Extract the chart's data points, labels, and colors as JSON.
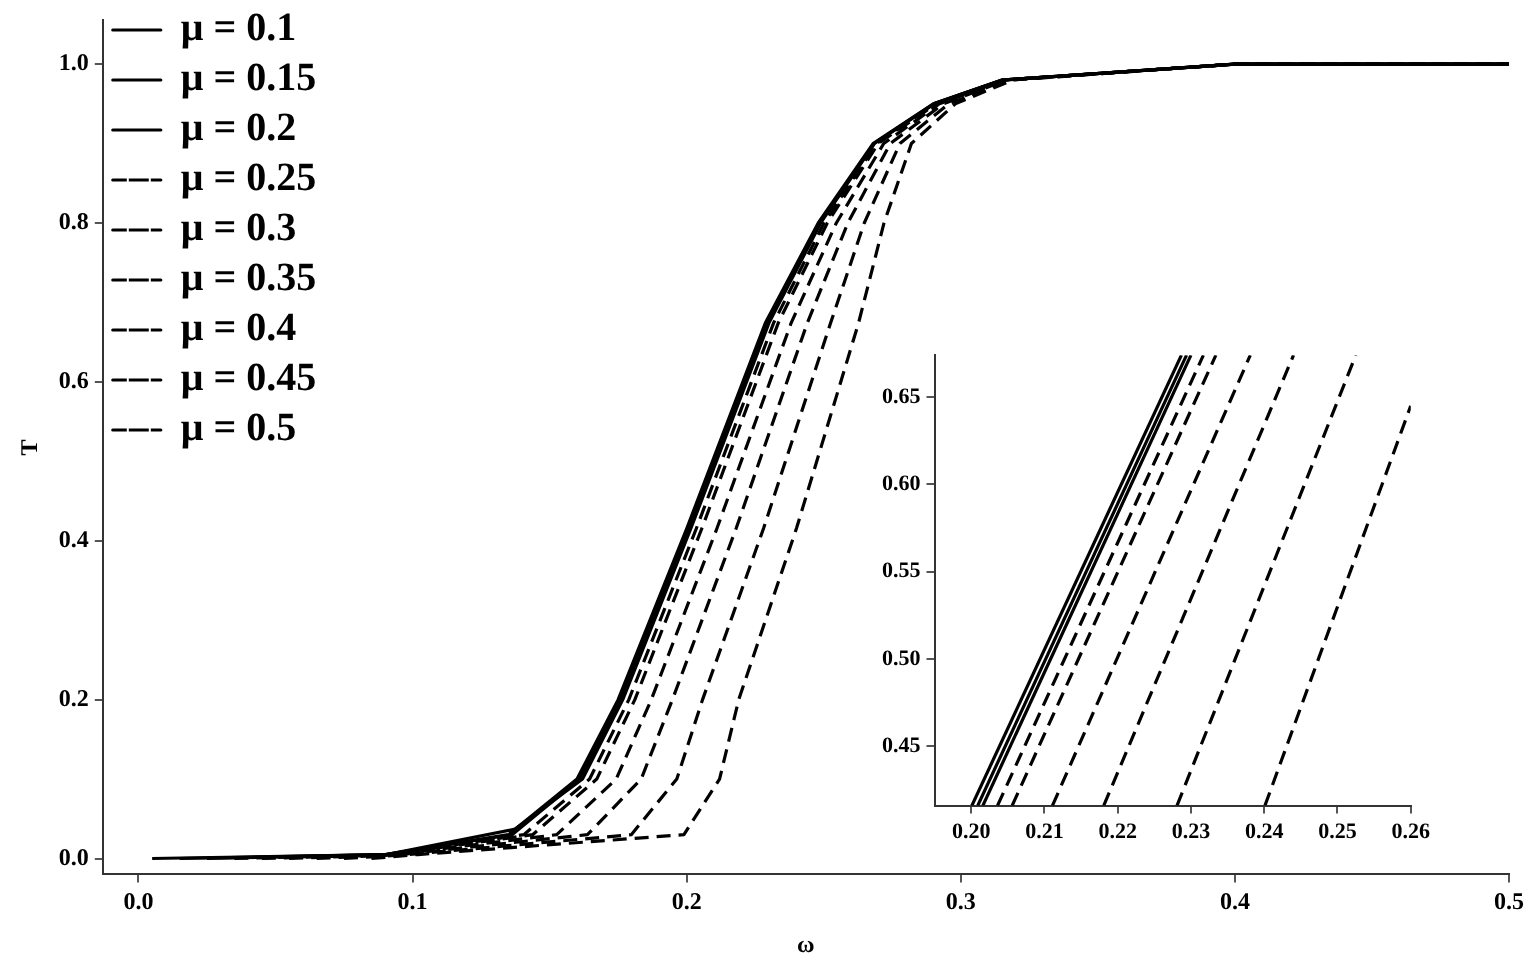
{
  "chart_data": [
    {
      "type": "line",
      "xlabel": "ω",
      "ylabel": "T",
      "xlim": [
        -0.013,
        0.5
      ],
      "ylim": [
        -0.02,
        1.055
      ],
      "xticks": [
        {
          "value": 0,
          "label": "0.0"
        },
        0.1,
        0.2,
        0.3,
        0.4,
        0.5
      ],
      "yticks": [
        {
          "value": 0,
          "label": "0.0"
        },
        0.2,
        0.4,
        0.6,
        0.8,
        {
          "value": 1,
          "label": "1.0"
        }
      ],
      "grid": false,
      "legend": "top left",
      "series": [
        {
          "name": "μ = 0.1",
          "color": "#000000",
          "line_style": "solid",
          "x": [
            0.005,
            0.09,
            0.135,
            0.16,
            0.175,
            0.2001,
            0.2287,
            0.248,
            0.268,
            0.29,
            0.315,
            0.4,
            0.5
          ],
          "values": [
            0,
            0.005,
            0.03,
            0.1,
            0.2,
            0.416,
            0.674,
            0.8,
            0.9,
            0.95,
            0.98,
            1,
            1
          ]
        },
        {
          "name": "μ = 0.15",
          "color": "#000000",
          "line_style": "solid",
          "x": [
            0.015,
            0.0902,
            0.1363,
            0.161,
            0.1759,
            0.2009,
            0.2294,
            0.2485,
            0.2683,
            0.2902,
            0.3151,
            0.4,
            0.5
          ],
          "values": [
            0,
            0.005,
            0.03,
            0.1,
            0.2,
            0.416,
            0.674,
            0.8,
            0.9,
            0.95,
            0.98,
            1,
            1
          ]
        },
        {
          "name": "μ = 0.2",
          "color": "#000000",
          "line_style": "solid",
          "x": [
            0.025,
            0.0905,
            0.1374,
            0.162,
            0.1767,
            0.2016,
            0.23,
            0.2489,
            0.2685,
            0.2903,
            0.3152,
            0.4,
            0.5
          ],
          "values": [
            0,
            0.005,
            0.037,
            0.1,
            0.2,
            0.416,
            0.674,
            0.8,
            0.9,
            0.95,
            0.98,
            1,
            1
          ]
        },
        {
          "name": "μ = 0.25",
          "color": "#000000",
          "line_style": "dashed",
          "x": [
            0.035,
            0.091,
            0.1406,
            0.1646,
            0.1789,
            0.2036,
            0.2317,
            0.2501,
            0.2692,
            0.2907,
            0.3154,
            0.4,
            0.5
          ],
          "values": [
            0,
            0.005,
            0.03,
            0.1,
            0.2,
            0.416,
            0.674,
            0.8,
            0.9,
            0.95,
            0.98,
            1,
            1
          ]
        },
        {
          "name": "μ = 0.3",
          "color": "#000000",
          "line_style": "dashed",
          "x": [
            0.045,
            0.0917,
            0.1438,
            0.1672,
            0.1811,
            0.2056,
            0.2334,
            0.2513,
            0.2699,
            0.2911,
            0.3156,
            0.4,
            0.5
          ],
          "values": [
            0,
            0.005,
            0.03,
            0.1,
            0.2,
            0.416,
            0.674,
            0.8,
            0.9,
            0.95,
            0.98,
            1,
            1
          ]
        },
        {
          "name": "μ = 0.35",
          "color": "#000000",
          "line_style": "dashed",
          "x": [
            0.055,
            0.0933,
            0.1526,
            0.1743,
            0.1871,
            0.2111,
            0.2381,
            0.2546,
            0.2719,
            0.2922,
            0.3161,
            0.4,
            0.5
          ],
          "values": [
            0,
            0.005,
            0.03,
            0.1,
            0.2,
            0.416,
            0.674,
            0.8,
            0.9,
            0.95,
            0.98,
            1,
            1
          ]
        },
        {
          "name": "μ = 0.4",
          "color": "#000000",
          "line_style": "dashed",
          "x": [
            0.065,
            0.0954,
            0.1638,
            0.1834,
            0.1948,
            0.2181,
            0.244,
            0.2588,
            0.2743,
            0.2936,
            0.3168,
            0.4,
            0.5
          ],
          "values": [
            0,
            0.005,
            0.03,
            0.1,
            0.2,
            0.416,
            0.674,
            0.8,
            0.9,
            0.95,
            0.98,
            1,
            1
          ]
        },
        {
          "name": "μ = 0.45",
          "color": "#000000",
          "line_style": "dashed",
          "x": [
            0.075,
            0.0984,
            0.1798,
            0.1964,
            0.2058,
            0.2281,
            0.2525,
            0.2648,
            0.2778,
            0.2956,
            0.3178,
            0.4,
            0.5
          ],
          "values": [
            0,
            0.005,
            0.03,
            0.1,
            0.2,
            0.416,
            0.674,
            0.8,
            0.9,
            0.95,
            0.98,
            1,
            1
          ]
        },
        {
          "name": "μ = 0.5",
          "color": "#000000",
          "line_style": "dashed",
          "x": [
            0.085,
            0.102,
            0.199,
            0.212,
            0.219,
            0.2401,
            0.2627,
            0.272,
            0.282,
            0.298,
            0.319,
            0.4,
            0.5
          ],
          "values": [
            0,
            0.005,
            0.03,
            0.1,
            0.2,
            0.416,
            0.674,
            0.8,
            0.9,
            0.95,
            0.98,
            1,
            1
          ]
        }
      ]
    },
    {
      "type": "line",
      "xlim": [
        0.195,
        0.26
      ],
      "ylim": [
        0.416,
        0.674
      ],
      "xticks": [
        {
          "value": 0.2,
          "label": "0.20"
        },
        0.21,
        0.22,
        0.23,
        0.24,
        0.25,
        0.26
      ],
      "yticks": [
        0.45,
        {
          "value": 0.5,
          "label": "0.50"
        },
        0.55,
        {
          "value": 0.6,
          "label": "0.60"
        },
        0.65
      ],
      "grid": false,
      "series": [
        {
          "color": "#000000",
          "line_style": "solid",
          "x": [
            0.2001,
            0.2287
          ],
          "values": [
            0.416,
            0.674
          ]
        },
        {
          "color": "#000000",
          "line_style": "solid",
          "x": [
            0.2009,
            0.2294
          ],
          "values": [
            0.416,
            0.674
          ]
        },
        {
          "color": "#000000",
          "line_style": "solid",
          "x": [
            0.2016,
            0.23
          ],
          "values": [
            0.416,
            0.674
          ]
        },
        {
          "color": "#000000",
          "line_style": "dashed",
          "x": [
            0.2036,
            0.2317
          ],
          "values": [
            0.416,
            0.674
          ]
        },
        {
          "color": "#000000",
          "line_style": "dashed",
          "x": [
            0.2056,
            0.2334
          ],
          "values": [
            0.416,
            0.674
          ]
        },
        {
          "color": "#000000",
          "line_style": "dashed",
          "x": [
            0.2111,
            0.2381
          ],
          "values": [
            0.416,
            0.674
          ]
        },
        {
          "color": "#000000",
          "line_style": "dashed",
          "x": [
            0.2181,
            0.244
          ],
          "values": [
            0.416,
            0.674
          ]
        },
        {
          "color": "#000000",
          "line_style": "dashed",
          "x": [
            0.2281,
            0.2525
          ],
          "values": [
            0.416,
            0.674
          ]
        },
        {
          "color": "#000000",
          "line_style": "dashed",
          "x": [
            0.2401,
            0.26
          ],
          "values": [
            0.416,
            0.645
          ]
        }
      ]
    }
  ]
}
